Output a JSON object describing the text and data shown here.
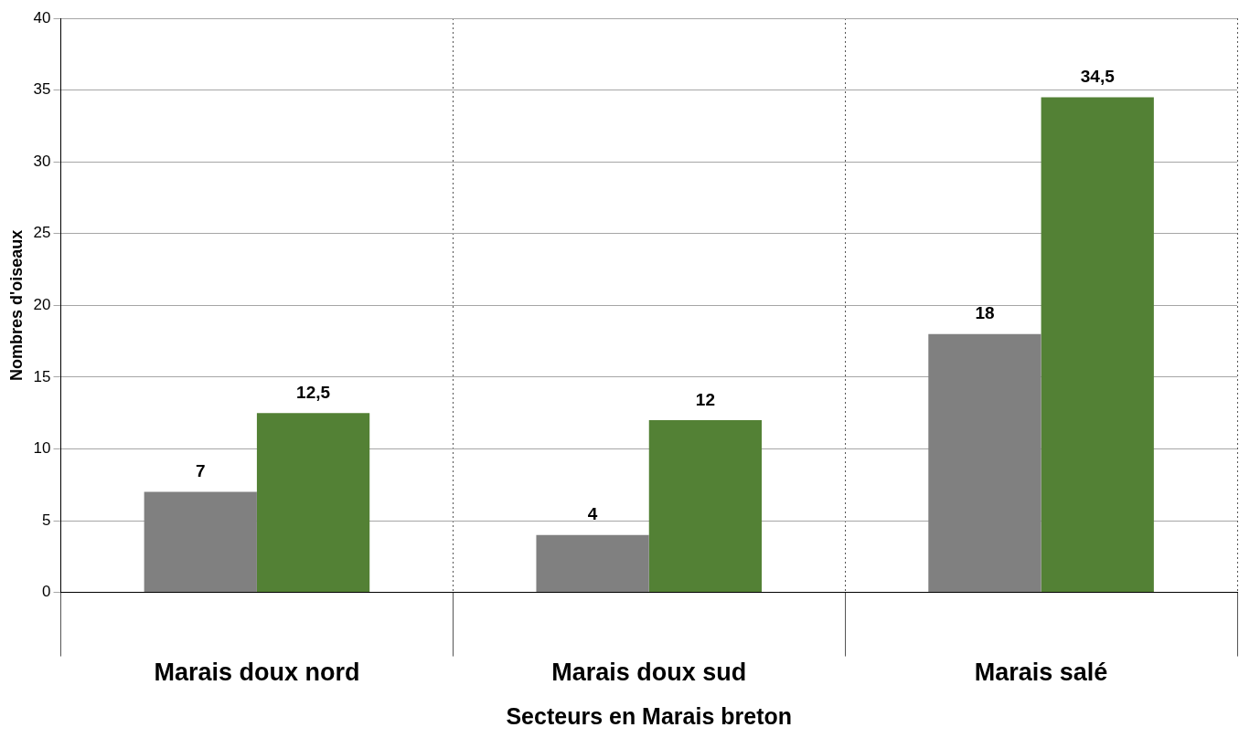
{
  "chart_data": {
    "type": "bar",
    "xlabel": "Secteurs en Marais breton",
    "ylabel": "Nombres d'oiseaux",
    "categories": [
      "Marais doux nord",
      "Marais doux sud",
      "Marais salé"
    ],
    "series": [
      {
        "color": "#808080",
        "values": [
          7,
          4,
          18
        ],
        "value_labels": [
          "7",
          "4",
          "18"
        ]
      },
      {
        "color": "#538135",
        "values": [
          12.5,
          12,
          34.5
        ],
        "value_labels": [
          "12,5",
          "12",
          "34,5"
        ]
      }
    ],
    "ylim": [
      0,
      40
    ],
    "yticks": [
      0,
      5,
      10,
      15,
      20,
      25,
      30,
      35,
      40
    ],
    "grid": true
  }
}
